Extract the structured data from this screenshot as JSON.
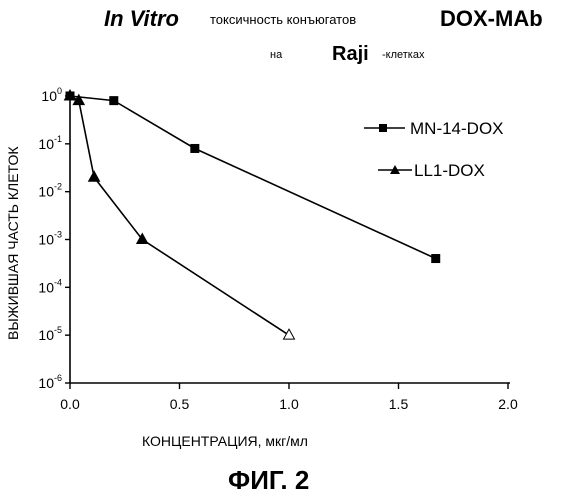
{
  "header": {
    "line1_part1": "In Vitro",
    "line1_part2": "токсичность конъюгатов",
    "line1_part3": "DOX-MAb",
    "line2_part1": "на",
    "line2_part2": "Raji",
    "line2_part3": "-клетках"
  },
  "figure_caption": "ФИГ. 2",
  "chart_data": {
    "type": "line",
    "xlabel": "КОНЦЕНТРАЦИЯ, мкг/мл",
    "ylabel": "ВЫЖИВШАЯ ЧАСТЬ КЛЕТОК",
    "xlim": [
      0,
      2.0
    ],
    "ylim_log10": [
      -6,
      0
    ],
    "y_scale": "log",
    "x_ticks": [
      "0.0",
      "0.5",
      "1.0",
      "1.5",
      "2.0"
    ],
    "y_ticks": [
      {
        "base": "10",
        "exp": "0"
      },
      {
        "base": "10",
        "exp": "-1"
      },
      {
        "base": "10",
        "exp": "-2"
      },
      {
        "base": "10",
        "exp": "-3"
      },
      {
        "base": "10",
        "exp": "-4"
      },
      {
        "base": "10",
        "exp": "-5"
      },
      {
        "base": "10",
        "exp": "-6"
      }
    ],
    "legend_position": "top-right",
    "series": [
      {
        "name": "MN-14-DOX",
        "marker": "square",
        "points": [
          {
            "x": 0.0,
            "y": 1.0
          },
          {
            "x": 0.2,
            "y": 0.8
          },
          {
            "x": 0.57,
            "y": 0.08
          },
          {
            "x": 1.67,
            "y": 0.0004
          }
        ]
      },
      {
        "name": "LL1-DOX",
        "marker": "triangle",
        "points": [
          {
            "x": 0.0,
            "y": 1.0
          },
          {
            "x": 0.04,
            "y": 0.8
          },
          {
            "x": 0.11,
            "y": 0.02
          },
          {
            "x": 0.33,
            "y": 0.001
          },
          {
            "x": 1.0,
            "y": 1e-05,
            "open": true
          }
        ]
      }
    ]
  }
}
